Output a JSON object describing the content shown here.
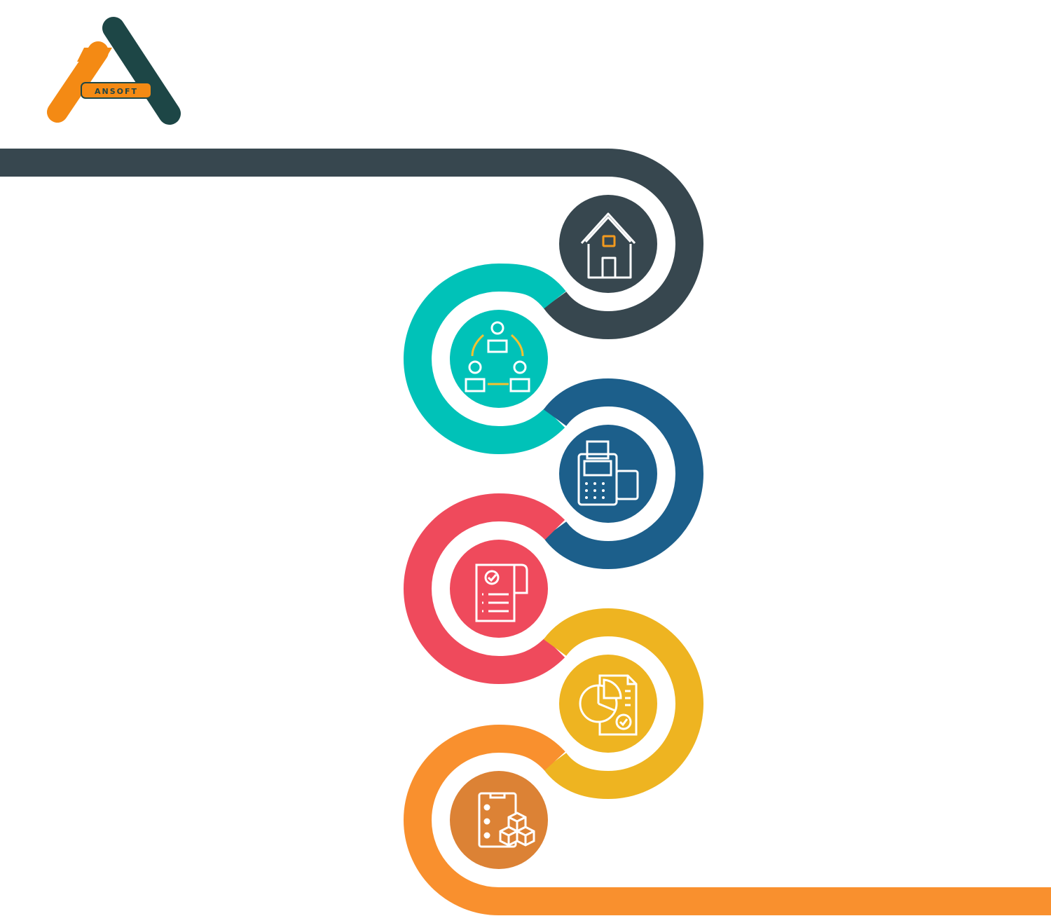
{
  "logo": {
    "text": "ANSOFT",
    "colors": {
      "orange": "#f48a14",
      "dark_green": "#1d4646"
    }
  },
  "steps": [
    {
      "icon": "house-icon",
      "color": "#37474f",
      "accent": "#f39a1e"
    },
    {
      "icon": "team-cycle-icon",
      "color": "#00c2b8",
      "accent": "#f5c12f"
    },
    {
      "icon": "pos-terminal-icon",
      "color": "#1c5f8b",
      "accent": "#ffffff"
    },
    {
      "icon": "receipt-check-icon",
      "color": "#ef4a5c",
      "accent": "#ffffff"
    },
    {
      "icon": "report-chart-icon",
      "color": "#eeb421",
      "accent": "#ffffff"
    },
    {
      "icon": "inventory-boxes-icon",
      "color": "#f9902e",
      "accent": "#ffffff",
      "inner": "#dc8235"
    }
  ]
}
